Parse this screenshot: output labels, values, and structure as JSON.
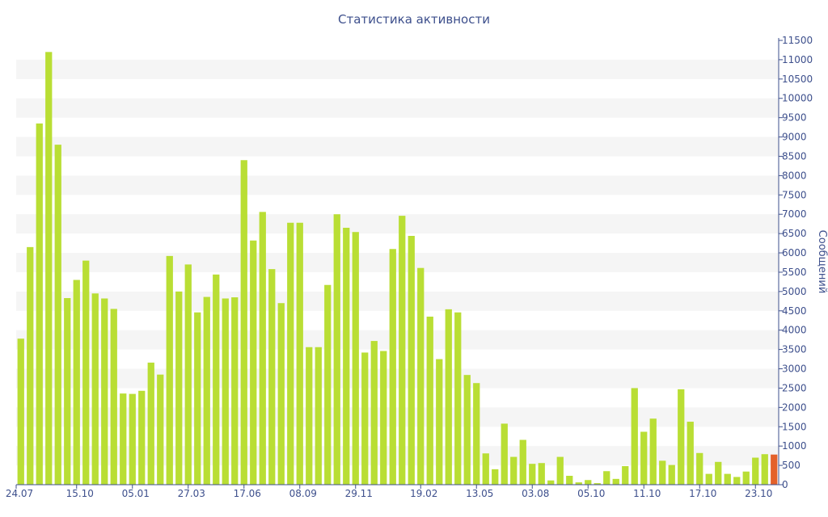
{
  "chart_data": {
    "type": "bar",
    "title": "Статистика активности",
    "ylabel": "Сообщений",
    "xlabel": "",
    "ylim": [
      0,
      11500
    ],
    "y_ticks": [
      0,
      500,
      1000,
      1500,
      2000,
      2500,
      3000,
      3500,
      4000,
      4500,
      5000,
      5500,
      6000,
      6500,
      7000,
      7500,
      8000,
      8500,
      9000,
      9500,
      10000,
      10500,
      11000,
      11500
    ],
    "x_tick_labels": [
      {
        "index": 0,
        "label": "24.07"
      },
      {
        "index": 6,
        "label": "15.10"
      },
      {
        "index": 12,
        "label": "05.01"
      },
      {
        "index": 18,
        "label": "27.03"
      },
      {
        "index": 24,
        "label": "17.06"
      },
      {
        "index": 30,
        "label": "08.09"
      },
      {
        "index": 36,
        "label": "29.11"
      },
      {
        "index": 43,
        "label": "19.02"
      },
      {
        "index": 49,
        "label": "13.05"
      },
      {
        "index": 55,
        "label": "03.08"
      },
      {
        "index": 61,
        "label": "05.10"
      },
      {
        "index": 67,
        "label": "11.10"
      },
      {
        "index": 73,
        "label": "17.10"
      },
      {
        "index": 79,
        "label": "23.10"
      }
    ],
    "values": [
      3780,
      6150,
      9350,
      11200,
      8800,
      4830,
      5300,
      5800,
      4950,
      4820,
      4550,
      2360,
      2350,
      2430,
      3160,
      2850,
      5920,
      5000,
      5700,
      4460,
      4860,
      5440,
      4820,
      4850,
      8400,
      6320,
      7060,
      5580,
      4700,
      6780,
      6780,
      3560,
      3560,
      5170,
      7000,
      6650,
      6540,
      3420,
      3720,
      3460,
      6100,
      6960,
      6440,
      5610,
      4350,
      3250,
      4540,
      4460,
      2840,
      2630,
      810,
      400,
      1580,
      720,
      1160,
      540,
      560,
      110,
      720,
      230,
      60,
      120,
      40,
      350,
      150,
      480,
      2500,
      1370,
      1710,
      620,
      510,
      2470,
      1630,
      820,
      280,
      590,
      280,
      200,
      340,
      700,
      790,
      780
    ],
    "highlight_last": true,
    "colors": {
      "bar": "#b9de34",
      "bar_highlight": "#e4612a",
      "stripe": "#f5f5f5",
      "axis": "#3d4f8c",
      "text": "#3d4f8c"
    },
    "grid": "alternating horizontal bands",
    "y_axis_side": "right"
  }
}
